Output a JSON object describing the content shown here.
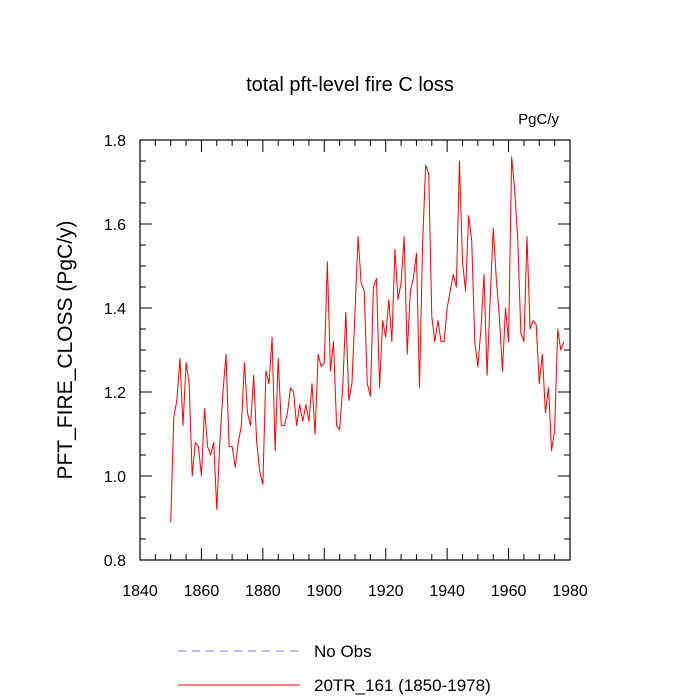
{
  "chart_data": {
    "type": "line",
    "title": "total pft-level fire C loss",
    "units": "PgC/y",
    "ylabel": "PFT_FIRE_CLOSS  (PgC/y)",
    "xlabel": "",
    "xlim": [
      1840,
      1980
    ],
    "ylim": [
      0.8,
      1.8
    ],
    "xticks": [
      1840,
      1860,
      1880,
      1900,
      1920,
      1940,
      1960,
      1980
    ],
    "yticks": [
      0.8,
      1.0,
      1.2,
      1.4,
      1.6,
      1.8
    ],
    "ytick_labels": [
      "0.8",
      "1.0",
      "1.2",
      "1.4",
      "1.6",
      "1.8"
    ],
    "grid": false,
    "legend_position": "bottom",
    "series": [
      {
        "name": "No Obs",
        "legend_label": "No Obs",
        "color": "#8080ff",
        "dash": "dashed",
        "x": [],
        "values": []
      },
      {
        "name": "20TR_161",
        "legend_label": "20TR_161 (1850-1978)",
        "color": "#ff0000",
        "dash": "solid",
        "x": [
          1850,
          1851,
          1852,
          1853,
          1854,
          1855,
          1856,
          1857,
          1858,
          1859,
          1860,
          1861,
          1862,
          1863,
          1864,
          1865,
          1866,
          1867,
          1868,
          1869,
          1870,
          1871,
          1872,
          1873,
          1874,
          1875,
          1876,
          1877,
          1878,
          1879,
          1880,
          1881,
          1882,
          1883,
          1884,
          1885,
          1886,
          1887,
          1888,
          1889,
          1890,
          1891,
          1892,
          1893,
          1894,
          1895,
          1896,
          1897,
          1898,
          1899,
          1900,
          1901,
          1902,
          1903,
          1904,
          1905,
          1906,
          1907,
          1908,
          1909,
          1910,
          1911,
          1912,
          1913,
          1914,
          1915,
          1916,
          1917,
          1918,
          1919,
          1920,
          1921,
          1922,
          1923,
          1924,
          1925,
          1926,
          1927,
          1928,
          1929,
          1930,
          1931,
          1932,
          1933,
          1934,
          1935,
          1936,
          1937,
          1938,
          1939,
          1940,
          1941,
          1942,
          1943,
          1944,
          1945,
          1946,
          1947,
          1948,
          1949,
          1950,
          1951,
          1952,
          1953,
          1954,
          1955,
          1956,
          1957,
          1958,
          1959,
          1960,
          1961,
          1962,
          1963,
          1964,
          1965,
          1966,
          1967,
          1968,
          1969,
          1970,
          1971,
          1972,
          1973,
          1974,
          1975,
          1976,
          1977,
          1978
        ],
        "values": [
          0.89,
          1.14,
          1.18,
          1.28,
          1.12,
          1.27,
          1.22,
          1.0,
          1.08,
          1.07,
          1.0,
          1.16,
          1.07,
          1.05,
          1.08,
          0.92,
          1.08,
          1.2,
          1.29,
          1.07,
          1.07,
          1.02,
          1.08,
          1.12,
          1.27,
          1.15,
          1.12,
          1.24,
          1.08,
          1.01,
          0.98,
          1.25,
          1.22,
          1.33,
          1.06,
          1.28,
          1.12,
          1.12,
          1.15,
          1.21,
          1.2,
          1.12,
          1.17,
          1.13,
          1.17,
          1.13,
          1.22,
          1.1,
          1.29,
          1.26,
          1.27,
          1.51,
          1.25,
          1.32,
          1.12,
          1.11,
          1.21,
          1.39,
          1.18,
          1.22,
          1.39,
          1.57,
          1.46,
          1.44,
          1.22,
          1.19,
          1.45,
          1.47,
          1.21,
          1.37,
          1.33,
          1.42,
          1.32,
          1.54,
          1.42,
          1.46,
          1.57,
          1.29,
          1.44,
          1.47,
          1.53,
          1.21,
          1.55,
          1.74,
          1.72,
          1.38,
          1.32,
          1.37,
          1.32,
          1.32,
          1.4,
          1.44,
          1.48,
          1.45,
          1.75,
          1.51,
          1.44,
          1.62,
          1.56,
          1.32,
          1.26,
          1.35,
          1.48,
          1.24,
          1.42,
          1.59,
          1.47,
          1.38,
          1.25,
          1.4,
          1.32,
          1.76,
          1.68,
          1.56,
          1.34,
          1.32,
          1.57,
          1.35,
          1.37,
          1.36,
          1.22,
          1.29,
          1.15,
          1.21,
          1.06,
          1.11,
          1.35,
          1.3,
          1.32
        ]
      }
    ]
  }
}
